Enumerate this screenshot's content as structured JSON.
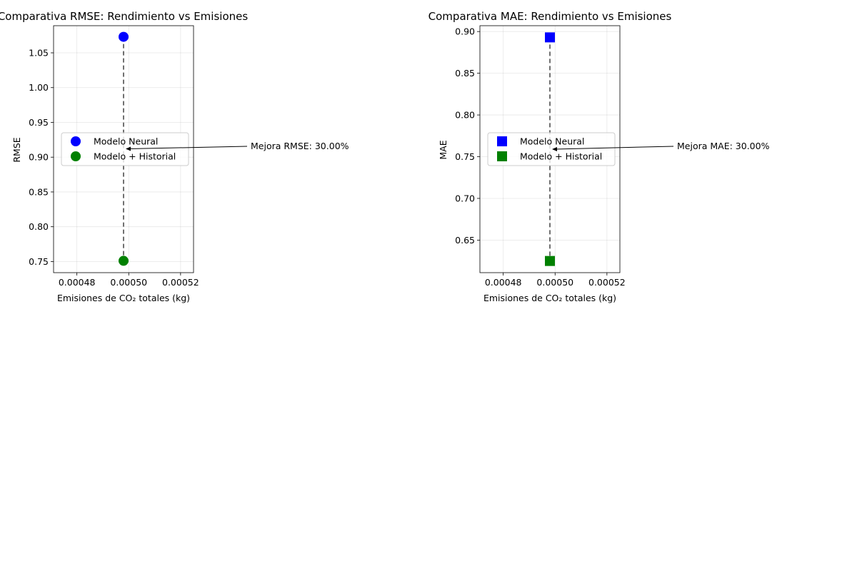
{
  "chart_data": [
    {
      "type": "scatter",
      "title": "Comparativa RMSE: Rendimiento vs Emisiones",
      "xlabel": "Emisiones de CO₂ totales (kg)",
      "ylabel": "RMSE",
      "xlim": [
        0.000471,
        0.000525
      ],
      "ylim": [
        0.734,
        1.089
      ],
      "xticks": [
        0.00048,
        0.0005,
        0.00052
      ],
      "xtick_labels": [
        "0.00048",
        "0.00050",
        "0.00052"
      ],
      "yticks": [
        0.75,
        0.8,
        0.85,
        0.9,
        0.95,
        1.0,
        1.05
      ],
      "ytick_labels": [
        "0.75",
        "0.80",
        "0.85",
        "0.90",
        "0.95",
        "1.00",
        "1.05"
      ],
      "grid": true,
      "marker": "circle",
      "legend_position": "center-left",
      "series": [
        {
          "name": "Modelo Neural",
          "color": "#0000ff",
          "points": [
            {
              "x": 0.000498,
              "y": 1.073
            }
          ]
        },
        {
          "name": "Modelo + Historial",
          "color": "#008000",
          "points": [
            {
              "x": 0.000498,
              "y": 0.751
            }
          ]
        }
      ],
      "connector": {
        "style": "dashed",
        "color": "#404040",
        "from": [
          0.000498,
          1.073
        ],
        "to": [
          0.000498,
          0.751
        ]
      },
      "annotation": {
        "text": "Mejora RMSE: 30.00%",
        "arrow_to": [
          0.000498,
          0.912
        ]
      }
    },
    {
      "type": "scatter",
      "title": "Comparativa MAE: Rendimiento vs Emisiones",
      "xlabel": "Emisiones de CO₂ totales (kg)",
      "ylabel": "MAE",
      "xlim": [
        0.000471,
        0.000525
      ],
      "ylim": [
        0.611,
        0.907
      ],
      "xticks": [
        0.00048,
        0.0005,
        0.00052
      ],
      "xtick_labels": [
        "0.00048",
        "0.00050",
        "0.00052"
      ],
      "yticks": [
        0.65,
        0.7,
        0.75,
        0.8,
        0.85,
        0.9
      ],
      "ytick_labels": [
        "0.65",
        "0.70",
        "0.75",
        "0.80",
        "0.85",
        "0.90"
      ],
      "grid": true,
      "marker": "square",
      "legend_position": "center-left",
      "series": [
        {
          "name": "Modelo Neural",
          "color": "#0000ff",
          "points": [
            {
              "x": 0.000498,
              "y": 0.893
            }
          ]
        },
        {
          "name": "Modelo + Historial",
          "color": "#008000",
          "points": [
            {
              "x": 0.000498,
              "y": 0.625
            }
          ]
        }
      ],
      "connector": {
        "style": "dashed",
        "color": "#404040",
        "from": [
          0.000498,
          0.893
        ],
        "to": [
          0.000498,
          0.625
        ]
      },
      "annotation": {
        "text": "Mejora MAE: 30.00%",
        "arrow_to": [
          0.000498,
          0.759
        ]
      }
    }
  ]
}
